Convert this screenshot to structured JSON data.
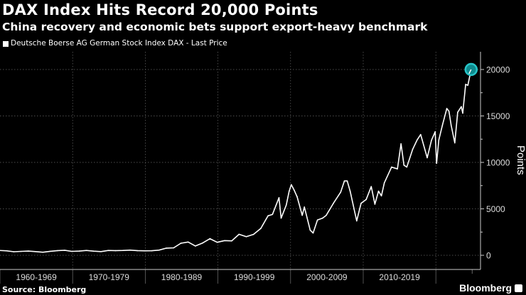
{
  "title": "DAX Index Hits Record 20,000 Points",
  "subtitle": "China recovery and economic bets support export-heavy benchmark",
  "source": "Source: Bloomberg",
  "brand": "Bloomberg",
  "chart_data": {
    "type": "line",
    "title": "DAX Index Hits Record 20,000 Points",
    "subtitle": "China recovery and economic bets support export-heavy benchmark",
    "ylabel": "Points",
    "xlabel": "",
    "ylim": [
      -1500,
      22000
    ],
    "xlim": [
      1960,
      2026
    ],
    "y_ticks": [
      0,
      5000,
      10000,
      15000,
      20000
    ],
    "x_tick_labels": [
      "1960-1969",
      "1970-1979",
      "1980-1989",
      "1990-1999",
      "2000-2009",
      "2010-2019"
    ],
    "grid": true,
    "y_axis_side": "right",
    "legend_position": "top-left",
    "colors": {
      "line": "#ffffff",
      "highlight": "#27c5c8",
      "background": "#000000"
    },
    "annotation": "highlight circle at 20000 record",
    "series": [
      {
        "name": "Deutsche Boerse AG German Stock Index DAX - Last Price",
        "x": [
          1960,
          1961,
          1962,
          1963,
          1964,
          1965,
          1966,
          1967,
          1968,
          1969,
          1970,
          1971,
          1972,
          1973,
          1974,
          1975,
          1976,
          1977,
          1978,
          1979,
          1980,
          1981,
          1982,
          1983,
          1984,
          1985,
          1986,
          1987,
          1988,
          1989,
          1990,
          1991,
          1992,
          1993,
          1994,
          1995,
          1996,
          1997,
          1997.6,
          1998.5,
          1998.8,
          1999.5,
          1999.9,
          2000.2,
          2000.6,
          2001.0,
          2001.7,
          2002.0,
          2002.8,
          2003.2,
          2003.8,
          2004.5,
          2005,
          2006,
          2007,
          2007.5,
          2007.9,
          2008.3,
          2009.2,
          2009.8,
          2010.5,
          2011.2,
          2011.7,
          2012.2,
          2012.6,
          2013,
          2014,
          2014.8,
          2015.3,
          2015.7,
          2016.1,
          2016.9,
          2017.5,
          2018,
          2018.9,
          2019.5,
          2020.0,
          2020.2,
          2020.5,
          2021,
          2021.6,
          2021.9,
          2022.2,
          2022.7,
          2023.1,
          2023.6,
          2023.8,
          2024.2,
          2024.5,
          2024.95
        ],
        "values": [
          520,
          480,
          380,
          420,
          450,
          400,
          330,
          430,
          500,
          540,
          420,
          450,
          520,
          440,
          400,
          520,
          500,
          520,
          560,
          500,
          480,
          490,
          560,
          770,
          800,
          1300,
          1430,
          1000,
          1330,
          1790,
          1400,
          1580,
          1550,
          2260,
          2000,
          2250,
          2890,
          4250,
          4400,
          6200,
          4000,
          5400,
          6900,
          7600,
          7000,
          6300,
          4300,
          5200,
          2700,
          2400,
          3800,
          4000,
          4300,
          5600,
          6800,
          8000,
          8000,
          6900,
          3700,
          5600,
          6000,
          7400,
          5500,
          6900,
          6400,
          7800,
          9500,
          9300,
          12000,
          9700,
          9500,
          11400,
          12400,
          13000,
          10500,
          12400,
          13300,
          9900,
          12400,
          14000,
          15800,
          15500,
          14000,
          12100,
          15400,
          16000,
          15300,
          18400,
          18300,
          20000
        ]
      }
    ]
  }
}
